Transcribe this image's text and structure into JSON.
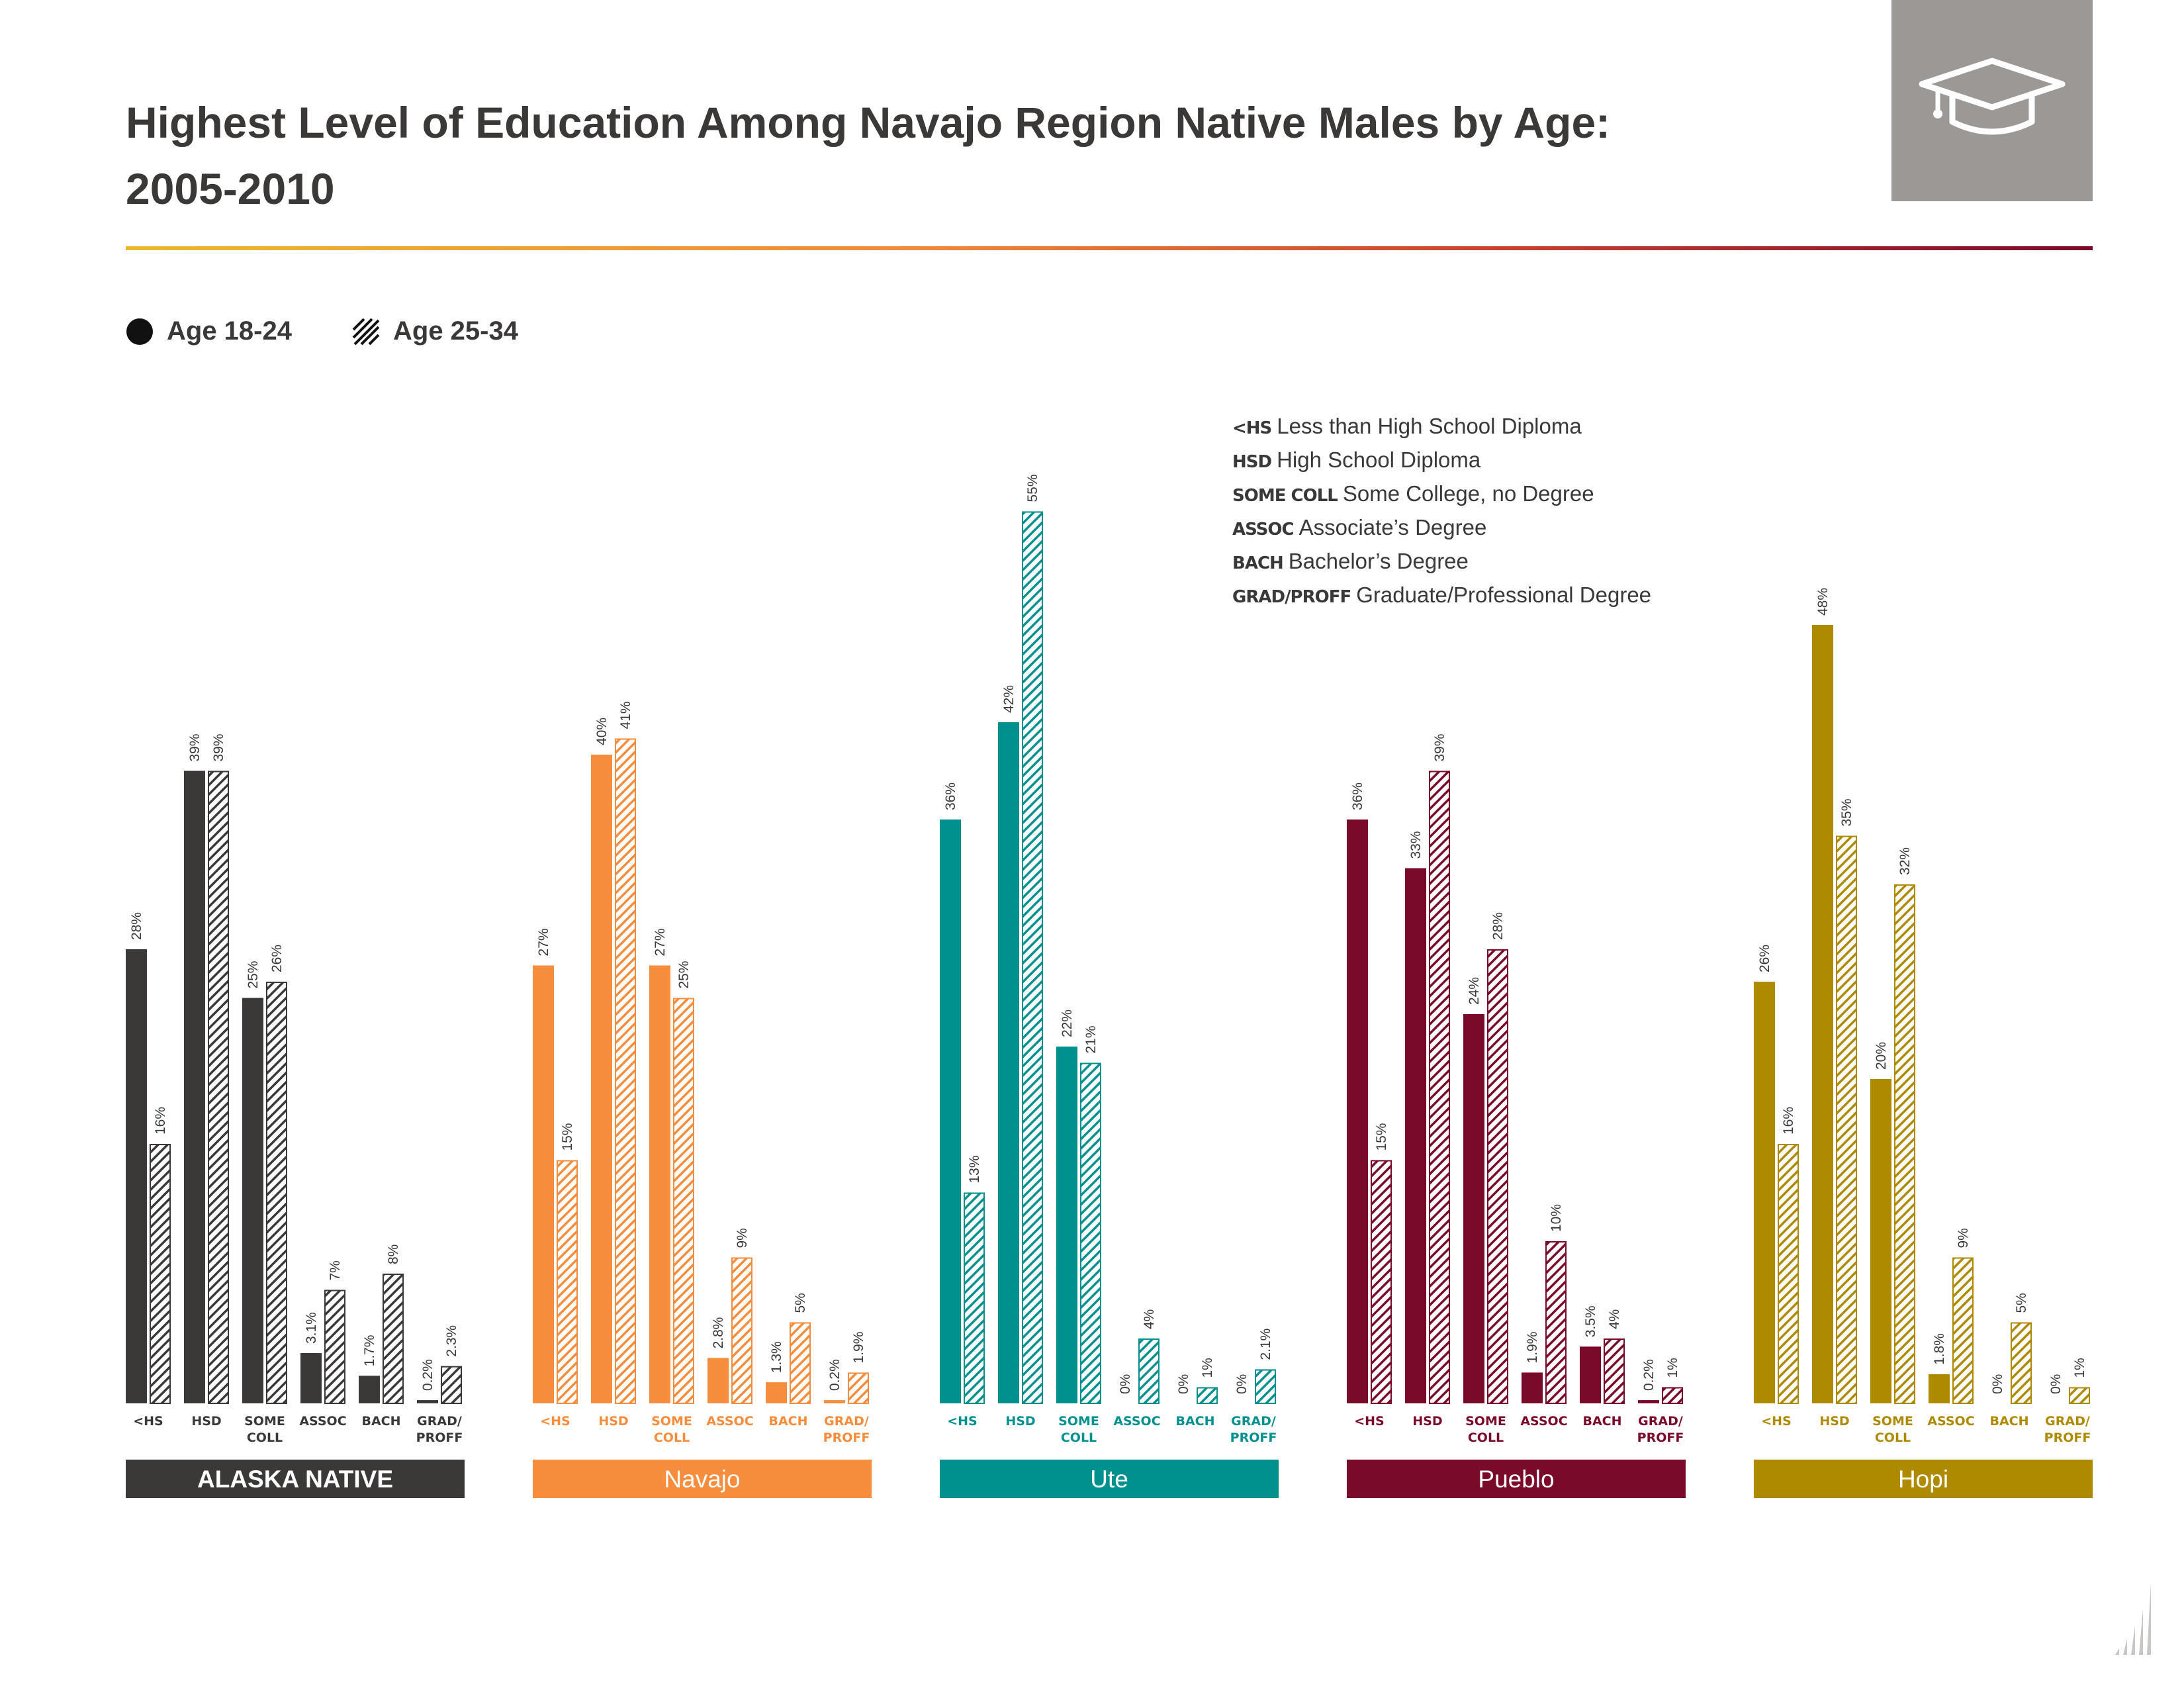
{
  "title": {
    "line1": "Highest Level of Education Among Navajo Region Native Males by Age:",
    "line2": "2005-2010"
  },
  "icons": {
    "header": "graduation-cap-icon",
    "footer": "bar-chart-icon"
  },
  "legend": {
    "items": [
      {
        "label": "Age 18-24",
        "swatch": "solid"
      },
      {
        "label": "Age 25-34",
        "swatch": "hatched"
      }
    ]
  },
  "abbreviations": [
    {
      "code": "<HS",
      "desc": "Less than High School Diploma"
    },
    {
      "code": "HSD",
      "desc": "High School Diploma"
    },
    {
      "code": "SOME COLL",
      "desc": "Some College, no Degree"
    },
    {
      "code": "ASSOC",
      "desc": "Associate’s Degree"
    },
    {
      "code": "BACH",
      "desc": "Bachelor’s Degree"
    },
    {
      "code": "GRAD/PROFF",
      "desc": "Graduate/Professional Degree"
    }
  ],
  "colors": {
    "header_box": "#9c9895",
    "rule_start": "#e8b92a",
    "rule_end": "#7a0a2a",
    "text": "#3b3838"
  },
  "chart_data": {
    "type": "bar",
    "series_names": [
      "Age 18-24",
      "Age 25-34"
    ],
    "y_unit": "%",
    "ylim": [
      0,
      55
    ],
    "panels": [
      {
        "group": "ALASKA NATIVE",
        "color": "#3b3838",
        "categories": [
          "<HS",
          "HSD",
          "SOME\nCOLL",
          "ASSOC",
          "BACH",
          "GRAD/\nPROFF"
        ],
        "series": [
          {
            "name": "Age 18-24",
            "values": [
              28,
              39,
              25,
              3.1,
              1.7,
              0.2
            ],
            "labels": [
              "28%",
              "39%",
              "25%",
              "3.1%",
              "1.7%",
              "0.2%"
            ]
          },
          {
            "name": "Age 25-34",
            "values": [
              16,
              39,
              26,
              7,
              8,
              2.3
            ],
            "labels": [
              "16%",
              "39%",
              "26%",
              "7%",
              "8%",
              "2.3%"
            ]
          }
        ]
      },
      {
        "group": "Navajo",
        "color": "#f58d3d",
        "categories": [
          "<HS",
          "HSD",
          "SOME\nCOLL",
          "ASSOC",
          "BACH",
          "GRAD/\nPROFF"
        ],
        "series": [
          {
            "name": "Age 18-24",
            "values": [
              27,
              40,
              27,
              2.8,
              1.3,
              0.2
            ],
            "labels": [
              "27%",
              "40%",
              "27%",
              "2.8%",
              "1.3%",
              "0.2%"
            ]
          },
          {
            "name": "Age 25-34",
            "values": [
              15,
              41,
              25,
              9,
              5,
              1.9
            ],
            "labels": [
              "15%",
              "41%",
              "25%",
              "9%",
              "5%",
              "1.9%"
            ]
          }
        ]
      },
      {
        "group": "Ute",
        "color": "#00918f",
        "categories": [
          "<HS",
          "HSD",
          "SOME\nCOLL",
          "ASSOC",
          "BACH",
          "GRAD/\nPROFF"
        ],
        "series": [
          {
            "name": "Age 18-24",
            "values": [
              36,
              42,
              22,
              0,
              0,
              0
            ],
            "labels": [
              "36%",
              "42%",
              "22%",
              "0%",
              "0%",
              "0%"
            ]
          },
          {
            "name": "Age 25-34",
            "values": [
              13,
              55,
              21,
              4,
              1,
              2.1
            ],
            "labels": [
              "13%",
              "55%",
              "21%",
              "4%",
              "1%",
              "2.1%"
            ]
          }
        ]
      },
      {
        "group": "Pueblo",
        "color": "#7a0a2a",
        "categories": [
          "<HS",
          "HSD",
          "SOME\nCOLL",
          "ASSOC",
          "BACH",
          "GRAD/\nPROFF"
        ],
        "series": [
          {
            "name": "Age 18-24",
            "values": [
              36,
              33,
              24,
              1.9,
              3.5,
              0.2
            ],
            "labels": [
              "36%",
              "33%",
              "24%",
              "1.9%",
              "3.5%",
              "0.2%"
            ]
          },
          {
            "name": "Age 25-34",
            "values": [
              15,
              39,
              28,
              10,
              4,
              1
            ],
            "labels": [
              "15%",
              "39%",
              "28%",
              "10%",
              "4%",
              "1%"
            ]
          }
        ]
      },
      {
        "group": "Hopi",
        "color": "#ae8a00",
        "categories": [
          "<HS",
          "HSD",
          "SOME\nCOLL",
          "ASSOC",
          "BACH",
          "GRAD/\nPROFF"
        ],
        "series": [
          {
            "name": "Age 18-24",
            "values": [
              26,
              48,
              20,
              1.8,
              0,
              0
            ],
            "labels": [
              "26%",
              "48%",
              "20%",
              "1.8%",
              "0%",
              "0%"
            ]
          },
          {
            "name": "Age 25-34",
            "values": [
              16,
              35,
              32,
              9,
              5,
              1
            ],
            "labels": [
              "16%",
              "35%",
              "32%",
              "9%",
              "5%",
              "1%"
            ]
          }
        ]
      }
    ]
  }
}
